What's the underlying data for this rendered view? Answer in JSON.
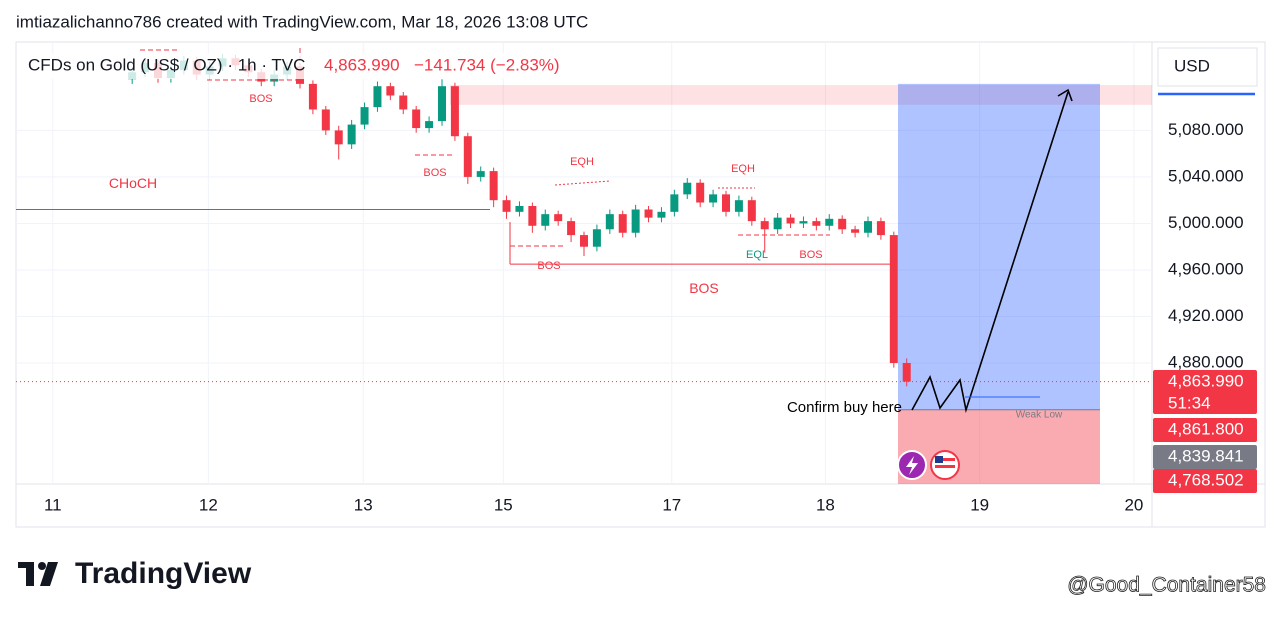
{
  "header": {
    "credit": "imtiazalichanno786 created with TradingView.com, Mar 18, 2026 13:08 UTC"
  },
  "chart_data": {
    "type": "candlestick",
    "symbol": "CFDs on Gold (US$ / OZ) · 1h · TVC",
    "last_price": "4,863.990",
    "change": "−141.734 (−2.83%)",
    "currency": "USD",
    "up_color": "#089981",
    "down_color": "#f23645",
    "x": [
      18,
      20,
      22,
      24,
      26,
      28,
      30,
      32,
      34,
      36,
      38,
      40,
      42,
      44,
      46,
      48,
      50,
      52,
      54,
      56,
      58,
      60,
      62,
      64,
      66,
      68,
      70,
      72,
      74,
      76,
      78,
      80,
      82,
      84,
      86,
      88,
      90,
      92,
      94,
      96,
      98,
      100,
      102,
      104,
      106,
      108,
      110,
      112,
      114,
      116,
      118,
      120,
      122,
      124,
      126,
      128,
      130,
      132,
      134,
      136,
      138
    ],
    "open": [
      5124,
      5130,
      5138,
      5125,
      5132,
      5140,
      5128,
      5135,
      5142,
      5136,
      5130,
      5122,
      5128,
      5135,
      5120,
      5098,
      5080,
      5068,
      5085,
      5100,
      5118,
      5110,
      5098,
      5082,
      5088,
      5118,
      5075,
      5040,
      5045,
      5020,
      5010,
      5015,
      4998,
      5008,
      5002,
      4990,
      4980,
      4995,
      5008,
      4992,
      5012,
      5005,
      5010,
      5025,
      5035,
      5018,
      5025,
      5010,
      5020,
      5002,
      4995,
      5005,
      5000,
      5002,
      4998,
      5004,
      4995,
      4992,
      5002,
      4990,
      4880
    ],
    "high": [
      5134,
      5142,
      5141,
      5136,
      5144,
      5143,
      5139,
      5146,
      5145,
      5139,
      5133,
      5132,
      5139,
      5138,
      5123,
      5101,
      5084,
      5089,
      5104,
      5122,
      5121,
      5113,
      5101,
      5092,
      5124,
      5121,
      5078,
      5049,
      5048,
      5024,
      5019,
      5018,
      5012,
      5011,
      5005,
      4993,
      4999,
      5012,
      5011,
      5016,
      5015,
      5014,
      5029,
      5039,
      5038,
      5029,
      5028,
      5024,
      5023,
      5005,
      5009,
      5008,
      5006,
      5005,
      5008,
      5007,
      4998,
      5006,
      5005,
      4993,
      4884
    ],
    "low": [
      5120,
      5126,
      5121,
      5121,
      5128,
      5124,
      5124,
      5131,
      5132,
      5126,
      5118,
      5118,
      5124,
      5116,
      5094,
      5076,
      5055,
      5064,
      5081,
      5096,
      5106,
      5094,
      5078,
      5078,
      5084,
      5071,
      5034,
      5036,
      5014,
      5004,
      5006,
      4992,
      4994,
      4998,
      4984,
      4972,
      4976,
      4991,
      4988,
      4988,
      5001,
      5001,
      5006,
      5021,
      5014,
      5014,
      5006,
      5006,
      4998,
      4975,
      4991,
      4996,
      4996,
      4994,
      4994,
      4991,
      4988,
      4988,
      4986,
      4876,
      4860
    ],
    "close": [
      5130,
      5138,
      5125,
      5132,
      5140,
      5128,
      5135,
      5142,
      5136,
      5130,
      5122,
      5128,
      5135,
      5120,
      5098,
      5080,
      5068,
      5085,
      5100,
      5118,
      5110,
      5098,
      5082,
      5088,
      5118,
      5075,
      5040,
      5045,
      5020,
      5010,
      5015,
      4998,
      5008,
      5002,
      4990,
      4980,
      4995,
      5008,
      4992,
      5012,
      5005,
      5010,
      5025,
      5035,
      5018,
      5025,
      5010,
      5020,
      5002,
      4995,
      5005,
      5000,
      5002,
      4998,
      5004,
      4995,
      4992,
      5002,
      4990,
      4880,
      4864
    ],
    "xlim": [
      0,
      176
    ],
    "xticks": [
      {
        "value": 5.7,
        "label": "11"
      },
      {
        "value": 29.8,
        "label": "12"
      },
      {
        "value": 53.8,
        "label": "13"
      },
      {
        "value": 75.5,
        "label": "15"
      },
      {
        "value": 101.6,
        "label": "17"
      },
      {
        "value": 125.4,
        "label": "18"
      },
      {
        "value": 149.3,
        "label": "19"
      },
      {
        "value": 173.2,
        "label": "20"
      }
    ],
    "ylim": [
      4776,
      5156
    ],
    "yticks": [
      {
        "value": 5080,
        "label": "5,080.000"
      },
      {
        "value": 5040,
        "label": "5,040.000"
      },
      {
        "value": 5000,
        "label": "5,000.000"
      },
      {
        "value": 4960,
        "label": "4,960.000"
      },
      {
        "value": 4920,
        "label": "4,920.000"
      },
      {
        "value": 4880,
        "label": "4,880.000"
      }
    ],
    "grid": true,
    "levels": [
      {
        "label": "CHoCH",
        "value": 5012
      },
      {
        "label": "BOS",
        "value": 4965
      }
    ],
    "supply_zone": [
      5102,
      5119
    ],
    "position": {
      "target": 5120,
      "entry": 4839.841,
      "stop": 4768.502
    },
    "price_tags": [
      {
        "value": 4863.99,
        "label": "4,863.990",
        "color": "#f23645"
      },
      {
        "value": 4861.8,
        "label": "4,861.800",
        "color": "#f23645"
      },
      {
        "value": 4839.841,
        "label": "4,839.841",
        "color": "#787b86"
      },
      {
        "value": 4768.502,
        "label": "4,768.502",
        "color": "#f23645"
      }
    ],
    "countdown": "51:34",
    "annotations": [
      "BOS",
      "BOS",
      "EQH",
      "EQH",
      "BOS",
      "EQL",
      "BOS",
      "Confirm buy here",
      "Weak Low"
    ]
  },
  "footer": {
    "logo": "TradingView",
    "watermark": "@Good_Container58"
  }
}
